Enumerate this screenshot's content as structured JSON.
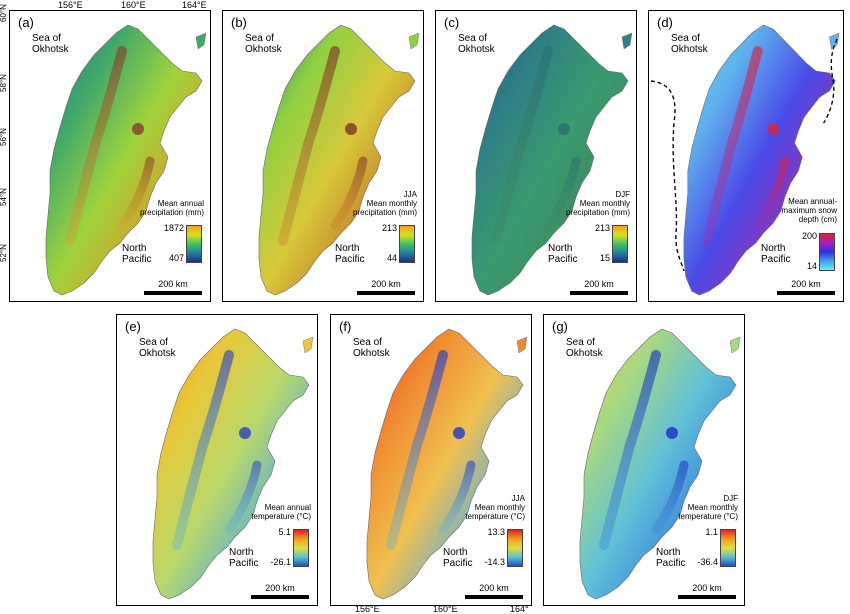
{
  "top_axis_labels": [
    "156°E",
    "160°E",
    "164°E"
  ],
  "bottom_axis_labels": [
    "156°E",
    "160°E",
    "164°"
  ],
  "lat_labels": [
    "60°N",
    "58°N",
    "56°N",
    "54°N",
    "52°N"
  ],
  "scale_label": "200 km",
  "panels": [
    {
      "label": "(a)",
      "sea": "Sea of\nOkhotsk",
      "ocean": "North\nPacific",
      "legend": "Mean annual\nprecipitation (mm)",
      "max": "1872",
      "min": "407",
      "palette": "precip"
    },
    {
      "label": "(b)",
      "sea": "Sea of\nOkhotsk",
      "ocean": "North\nPacific",
      "legend": "JJA\nMean monthly\nprecipitation (mm)",
      "max": "213",
      "min": "44",
      "palette": "precip"
    },
    {
      "label": "(c)",
      "sea": "Sea of\nOkhotsk",
      "ocean": "North\nPacific",
      "legend": "DJF\nMean monthly\nprecipitation (mm)",
      "max": "213",
      "min": "15",
      "palette": "precip"
    },
    {
      "label": "(d)",
      "sea": "Sea of\nOkhotsk",
      "ocean": "North\nPacific",
      "legend": "Mean annual-\nmaximum snow\ndepth (cm)",
      "max": "200",
      "min": "14",
      "palette": "snow"
    },
    {
      "label": "(e)",
      "sea": "Sea of\nOkhotsk",
      "ocean": "North\nPacific",
      "legend": "Mean annual\ntemperature (°C)",
      "max": "5.1",
      "min": "-26.1",
      "palette": "temp"
    },
    {
      "label": "(f)",
      "sea": "Sea of\nOkhotsk",
      "ocean": "North\nPacific",
      "legend": "JJA\nMean monthly\ntemperature (°C)",
      "max": "13.3",
      "min": "-14.3",
      "palette": "temp"
    },
    {
      "label": "(g)",
      "sea": "Sea of\nOkhotsk",
      "ocean": "North\nPacific",
      "legend": "DJF\nMean monthly\ntemperature (°C)",
      "max": "1.1",
      "min": "-36.4",
      "palette": "temp"
    }
  ],
  "colors": {
    "precip_fill_a": [
      "#2a6f8e",
      "#3fa86a",
      "#9fd33c",
      "#d99a2a",
      "#8a3a2a"
    ],
    "precip_fill_b": [
      "#2a6f8e",
      "#8fd040",
      "#d7c93a",
      "#c47a2b",
      "#7a3425"
    ],
    "precip_fill_c": [
      "#24587a",
      "#2e7f86",
      "#3a9a70",
      "#3f8a5f",
      "#2c6e72"
    ],
    "snow_fill": [
      "#5fe4ee",
      "#5fb0ee",
      "#4a4be8",
      "#9a2fb0",
      "#e0203a"
    ],
    "temp_fill_e": [
      "#f08a28",
      "#e8c838",
      "#b9d86a",
      "#58b0d8",
      "#2a40c8"
    ],
    "temp_fill_f": [
      "#e54028",
      "#f08a30",
      "#f0c050",
      "#60b0d8",
      "#1a3ad0"
    ],
    "temp_fill_g": [
      "#d8d05a",
      "#a8d880",
      "#60c0d8",
      "#3a80d8",
      "#1a30c0"
    ],
    "precip_bar": [
      "#f0a020",
      "#d8e020",
      "#40c060",
      "#2080a0",
      "#203080"
    ],
    "snow_bar": [
      "#e0203a",
      "#a020c0",
      "#3030e0",
      "#40a0f0",
      "#60f0f0"
    ],
    "temp_bar": [
      "#e02020",
      "#f0a020",
      "#e0e040",
      "#60c0d0",
      "#2050c0"
    ]
  }
}
